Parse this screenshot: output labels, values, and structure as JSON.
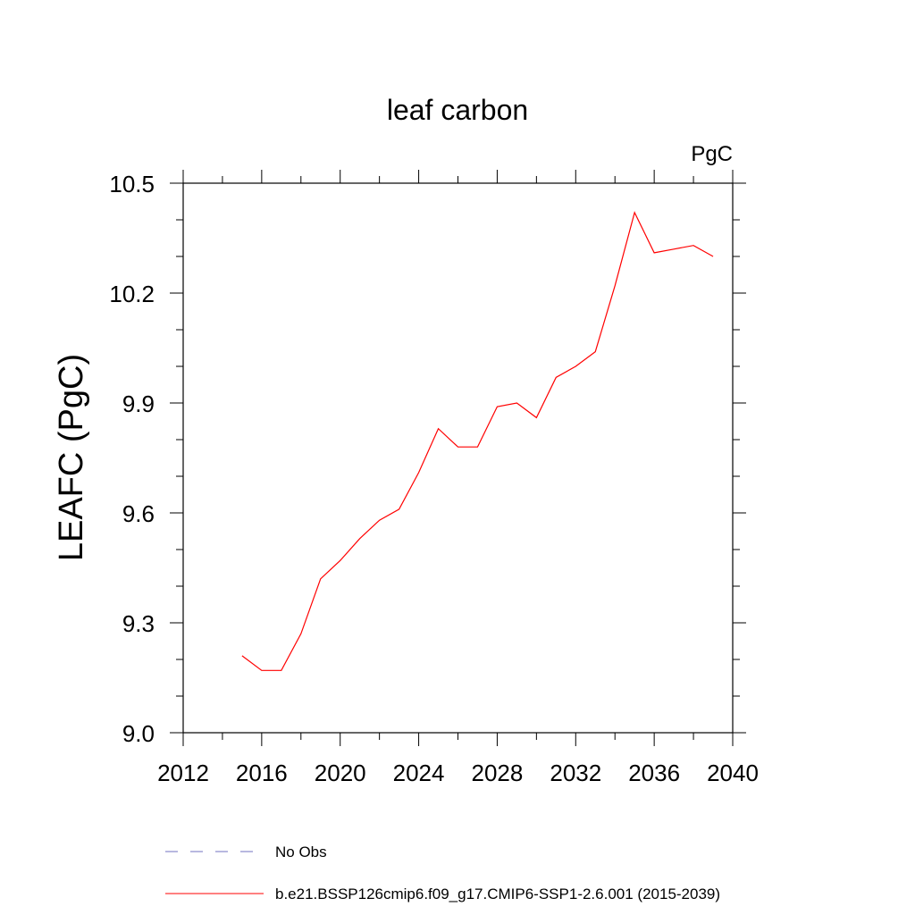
{
  "chart_data": {
    "type": "line",
    "title": "leaf carbon",
    "units": "PgC",
    "ylabel": "LEAFC  (PgC)",
    "xlabel": "",
    "xlim": [
      2012,
      2040
    ],
    "ylim": [
      9.0,
      10.5
    ],
    "x_ticks": [
      "2012",
      "2016",
      "2020",
      "2024",
      "2028",
      "2032",
      "2036",
      "2040"
    ],
    "y_ticks": [
      "9.0",
      "9.3",
      "9.6",
      "9.9",
      "10.2",
      "10.5"
    ],
    "grid": false,
    "legend_placement": "bottom",
    "series": [
      {
        "name": "No Obs",
        "color": "#7070c0",
        "dash": true,
        "x": [],
        "y": []
      },
      {
        "name": "b.e21.BSSP126cmip6.f09_g17.CMIP6-SSP1-2.6.001 (2015-2039)",
        "color": "#ff0000",
        "dash": false,
        "x": [
          2015,
          2016,
          2017,
          2018,
          2019,
          2020,
          2021,
          2022,
          2023,
          2024,
          2025,
          2026,
          2027,
          2028,
          2029,
          2030,
          2031,
          2032,
          2033,
          2034,
          2035,
          2036,
          2037,
          2038,
          2039
        ],
        "y": [
          9.21,
          9.17,
          9.17,
          9.27,
          9.42,
          9.47,
          9.53,
          9.58,
          9.61,
          9.71,
          9.83,
          9.78,
          9.78,
          9.89,
          9.9,
          9.86,
          9.97,
          10.0,
          10.04,
          10.22,
          10.42,
          10.31,
          10.32,
          10.33,
          10.3
        ]
      }
    ]
  }
}
